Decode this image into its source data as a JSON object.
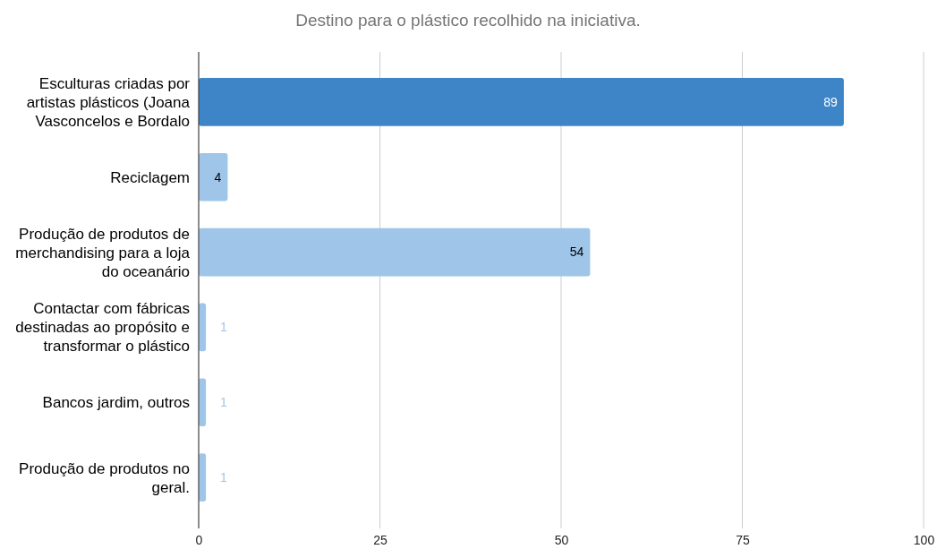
{
  "chart_data": {
    "type": "bar",
    "orientation": "horizontal",
    "title": "Destino para o plástico recolhido na iniciativa.",
    "categories": [
      "Esculturas criadas por artistas plásticos (Joana Vasconcelos e Bordalo",
      "Reciclagem",
      "Produção de produtos de merchandising para a loja do oceanário",
      "Contactar com fábricas destinadas ao propósito e transformar o plástico",
      "Bancos jardim, outros",
      "Produção de produtos no geral."
    ],
    "values": [
      89,
      4,
      54,
      1,
      1,
      1
    ],
    "colors": [
      "#3d85c6",
      "#9fc5e8",
      "#9fc5e8",
      "#9fc5e8",
      "#9fc5e8",
      "#9fc5e8"
    ],
    "xlim": [
      0,
      100
    ],
    "xticks": [
      0,
      25,
      50,
      75,
      100
    ],
    "grid": "x",
    "data_labels": true
  }
}
